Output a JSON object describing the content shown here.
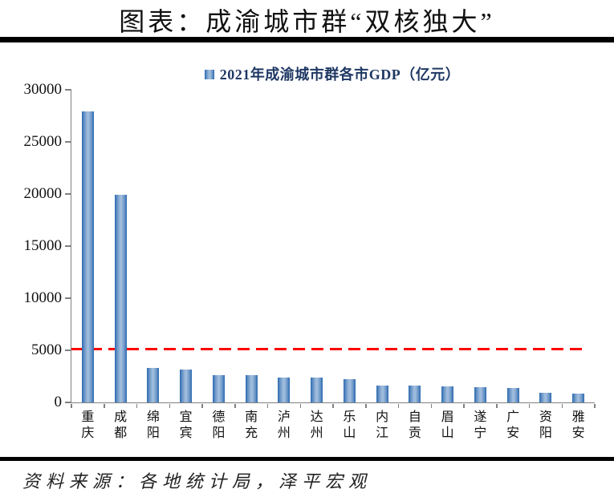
{
  "page": {
    "title": "图表：成渝城市群“双核独大”"
  },
  "legend": {
    "label": "2021年成渝城市群各市GDP（亿元）"
  },
  "footer": {
    "text": "资料来源：各地统计局，泽平宏观"
  },
  "colors": {
    "legend_text": "#1F3864",
    "bar_edge": "#2B69AE",
    "bar_mid": "#9FBCDC",
    "reference_line": "#FF0000",
    "axis": "#808080",
    "rule": "#000000"
  },
  "chart_data": {
    "type": "bar",
    "title": "2021年成渝城市群各市GDP（亿元）",
    "xlabel": "",
    "ylabel": "",
    "categories": [
      "重庆",
      "成都",
      "绵阳",
      "宜宾",
      "德阳",
      "南充",
      "泸州",
      "达州",
      "乐山",
      "内江",
      "自贡",
      "眉山",
      "遂宁",
      "广安",
      "资阳",
      "雅安"
    ],
    "values": [
      27894,
      19917,
      3350,
      3148,
      2657,
      2602,
      2406,
      2352,
      2205,
      1606,
      1601,
      1548,
      1501,
      1418,
      947,
      855
    ],
    "ylim": [
      0,
      30000
    ],
    "yticks": [
      0,
      5000,
      10000,
      15000,
      20000,
      25000,
      30000
    ],
    "grid": false,
    "legend_position": "top",
    "reference_line": {
      "value": 5150,
      "color": "#FF0000",
      "style": "dashed"
    }
  }
}
